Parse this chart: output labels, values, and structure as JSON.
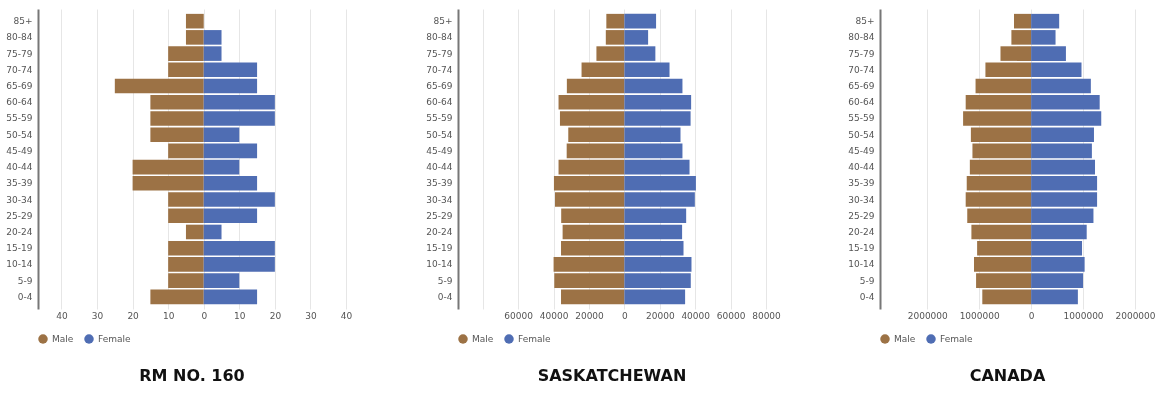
{
  "chart_data": [
    {
      "type": "bar",
      "orientation": "horizontal",
      "stacked": true,
      "title": "RM NO. 160",
      "categories": [
        "85+",
        "80-84",
        "75-79",
        "70-74",
        "65-69",
        "60-64",
        "55-59",
        "50-54",
        "45-49",
        "40-44",
        "35-39",
        "30-34",
        "25-29",
        "20-24",
        "15-19",
        "10-14",
        "5-9",
        "0-4"
      ],
      "series": [
        {
          "name": "Male",
          "color": "#9c7245",
          "values": [
            -5,
            -5,
            -10,
            -10,
            -25,
            -15,
            -15,
            -15,
            -10,
            -20,
            -20,
            -10,
            -10,
            -5,
            -10,
            -10,
            -10,
            -15
          ]
        },
        {
          "name": "Female",
          "color": "#4f6db3",
          "values": [
            0,
            5,
            5,
            15,
            15,
            20,
            20,
            10,
            15,
            10,
            15,
            20,
            15,
            5,
            20,
            20,
            10,
            15
          ]
        }
      ],
      "xlim": [
        -46.6,
        40
      ],
      "xticks": [
        {
          "value": -40,
          "label": "40"
        },
        {
          "value": -30,
          "label": "30"
        },
        {
          "value": -20,
          "label": "20"
        },
        {
          "value": -10,
          "label": "10"
        },
        0,
        10,
        20,
        30,
        40
      ],
      "grid": "x",
      "legend": "bottom"
    },
    {
      "type": "bar",
      "orientation": "horizontal",
      "stacked": true,
      "title": "SASKATCHEWAN",
      "categories": [
        "85+",
        "80-84",
        "75-79",
        "70-74",
        "65-69",
        "60-64",
        "55-59",
        "50-54",
        "45-49",
        "40-44",
        "35-39",
        "30-34",
        "25-29",
        "20-24",
        "15-19",
        "10-14",
        "5-9",
        "0-4"
      ],
      "series": [
        {
          "name": "Male",
          "color": "#9c7245",
          "values": [
            -10200,
            -10500,
            -15800,
            -24200,
            -32500,
            -37200,
            -36400,
            -31700,
            -32600,
            -37200,
            -39800,
            -39200,
            -35700,
            -34900,
            -35800,
            -40000,
            -39600,
            -35800
          ]
        },
        {
          "name": "Female",
          "color": "#4f6db3",
          "values": [
            17900,
            13400,
            17500,
            25500,
            32800,
            37700,
            37400,
            31700,
            32800,
            36800,
            40400,
            39800,
            34900,
            32600,
            33400,
            37900,
            37500,
            34300
          ]
        }
      ],
      "xlim": [
        -94000,
        80000
      ],
      "xticks": [
        {
          "value": -80000,
          "label": null
        },
        {
          "value": -60000,
          "label": "60000"
        },
        {
          "value": -40000,
          "label": "40000"
        },
        {
          "value": -20000,
          "label": "20000"
        },
        0,
        20000,
        40000,
        60000,
        80000
      ],
      "grid": "x",
      "legend": "bottom"
    },
    {
      "type": "bar",
      "orientation": "horizontal",
      "stacked": true,
      "title": "CANADA",
      "categories": [
        "85+",
        "80-84",
        "75-79",
        "70-74",
        "65-69",
        "60-64",
        "55-59",
        "50-54",
        "45-49",
        "40-44",
        "35-39",
        "30-34",
        "25-29",
        "20-24",
        "15-19",
        "10-14",
        "5-9",
        "0-4"
      ],
      "series": [
        {
          "name": "Male",
          "color": "#9c7245",
          "values": [
            -330000,
            -380000,
            -590000,
            -880000,
            -1070000,
            -1260000,
            -1310000,
            -1160000,
            -1130000,
            -1180000,
            -1240000,
            -1260000,
            -1230000,
            -1150000,
            -1040000,
            -1100000,
            -1060000,
            -940000
          ]
        },
        {
          "name": "Female",
          "color": "#4f6db3",
          "values": [
            540000,
            470000,
            670000,
            970000,
            1150000,
            1320000,
            1350000,
            1210000,
            1170000,
            1230000,
            1270000,
            1270000,
            1200000,
            1070000,
            980000,
            1030000,
            1000000,
            900000
          ]
        }
      ],
      "xlim": [
        -2910000,
        2000000
      ],
      "xticks": [
        {
          "value": -2000000,
          "label": "2000000"
        },
        {
          "value": -1000000,
          "label": "1000000"
        },
        0,
        1000000,
        2000000
      ],
      "grid": "x",
      "legend": "bottom"
    }
  ]
}
